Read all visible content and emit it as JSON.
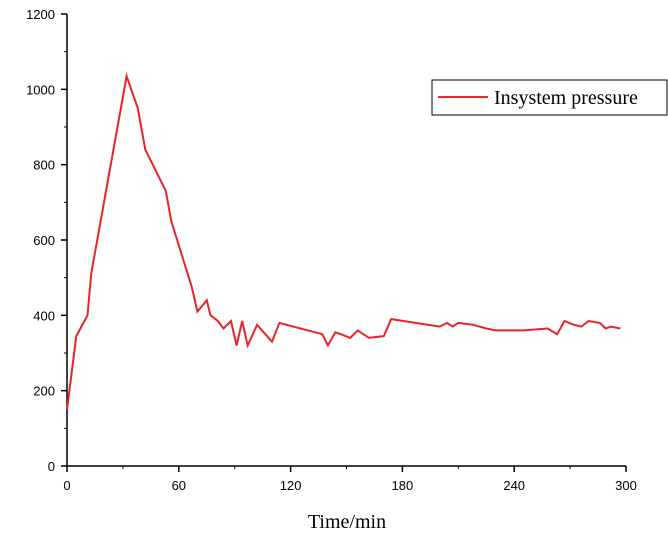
{
  "chart_data": {
    "type": "line",
    "title": "",
    "xlabel": "Time/min",
    "ylabel": "",
    "xlim": [
      0,
      300
    ],
    "ylim": [
      0,
      1200
    ],
    "x_ticks": [
      0,
      60,
      120,
      180,
      240,
      300
    ],
    "y_ticks": [
      0,
      200,
      400,
      600,
      800,
      1000,
      1200
    ],
    "x_tick_labels": [
      "0",
      "60",
      "120",
      "180",
      "240",
      "300"
    ],
    "y_tick_labels": [
      "0",
      "200",
      "400",
      "600",
      "800",
      "1000",
      "1200"
    ],
    "grid": false,
    "legend_position": "top-right",
    "series": [
      {
        "name": "Insystem pressure",
        "color": "#e8232a",
        "x": [
          0,
          5,
          11,
          13,
          32,
          38,
          42,
          53,
          56,
          67,
          70,
          75,
          77,
          81,
          84,
          88,
          91,
          94,
          97,
          102,
          110,
          114,
          137,
          140,
          144,
          147,
          152,
          156,
          162,
          170,
          174,
          200,
          204,
          207,
          210,
          218,
          225,
          230,
          245,
          258,
          263,
          267,
          272,
          276,
          280,
          286,
          289,
          292,
          297
        ],
        "y": [
          150,
          345,
          400,
          510,
          1035,
          950,
          840,
          730,
          650,
          475,
          410,
          440,
          400,
          385,
          365,
          385,
          320,
          385,
          320,
          375,
          330,
          380,
          350,
          320,
          355,
          350,
          340,
          360,
          340,
          345,
          390,
          370,
          380,
          370,
          380,
          375,
          365,
          360,
          360,
          365,
          350,
          385,
          375,
          370,
          385,
          380,
          365,
          370,
          365
        ]
      }
    ]
  }
}
